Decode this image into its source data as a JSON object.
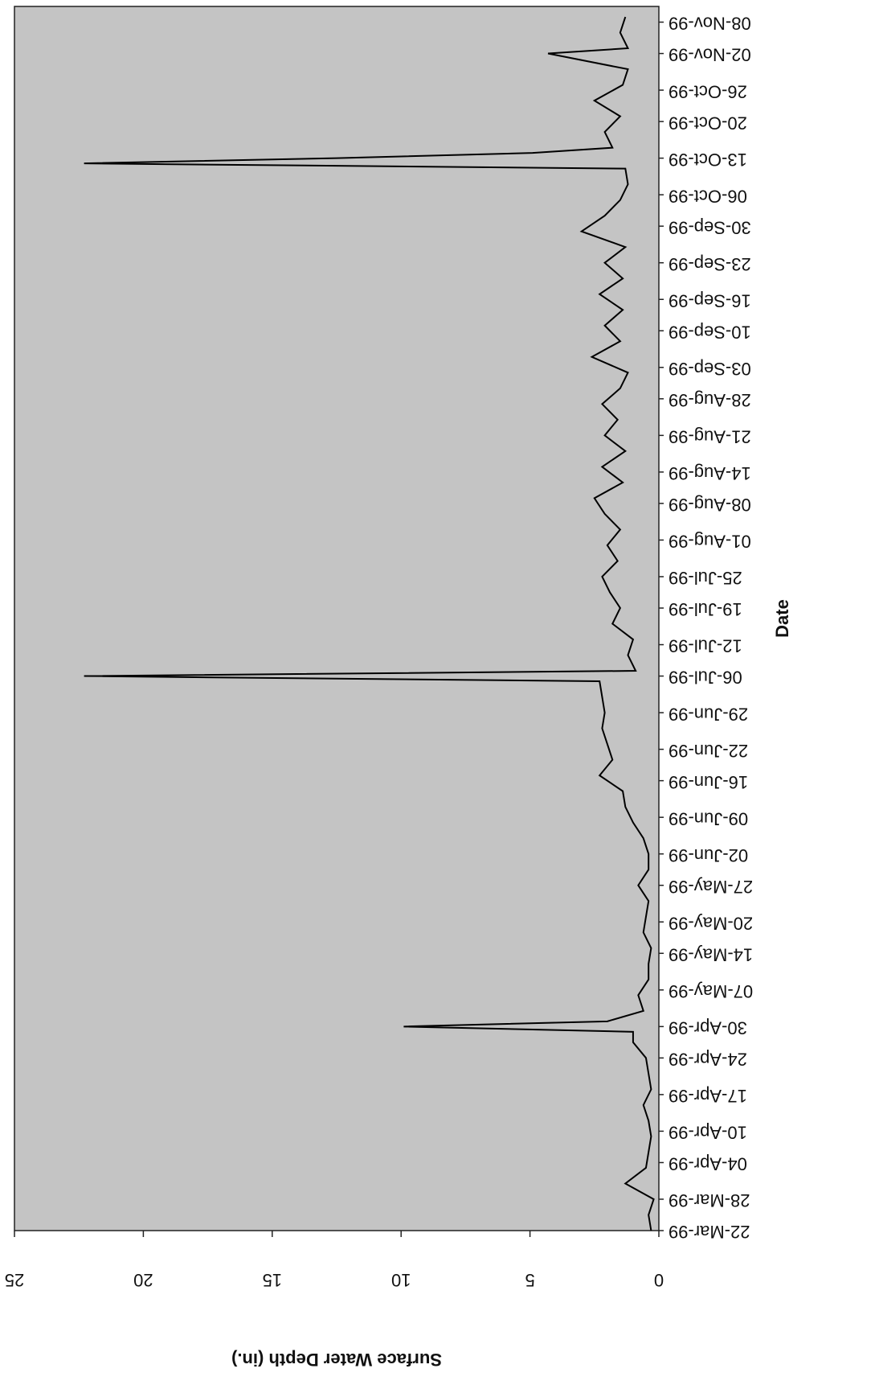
{
  "chart_data": {
    "type": "line",
    "x_label": "Date",
    "y_label": "Surface Water Depth (in.)",
    "x": [
      "1999-03-22",
      "1999-03-25",
      "1999-03-28",
      "1999-03-31",
      "1999-04-03",
      "1999-04-06",
      "1999-04-09",
      "1999-04-12",
      "1999-04-15",
      "1999-04-18",
      "1999-04-21",
      "1999-04-24",
      "1999-04-27",
      "1999-04-29",
      "1999-04-30",
      "1999-05-01",
      "1999-05-03",
      "1999-05-06",
      "1999-05-09",
      "1999-05-12",
      "1999-05-15",
      "1999-05-18",
      "1999-05-21",
      "1999-05-24",
      "1999-05-27",
      "1999-05-30",
      "1999-06-02",
      "1999-06-05",
      "1999-06-08",
      "1999-06-11",
      "1999-06-14",
      "1999-06-17",
      "1999-06-20",
      "1999-06-23",
      "1999-06-26",
      "1999-06-29",
      "1999-07-02",
      "1999-07-05",
      "1999-07-06",
      "1999-07-07",
      "1999-07-10",
      "1999-07-13",
      "1999-07-16",
      "1999-07-19",
      "1999-07-22",
      "1999-07-25",
      "1999-07-28",
      "1999-07-31",
      "1999-08-03",
      "1999-08-06",
      "1999-08-09",
      "1999-08-12",
      "1999-08-15",
      "1999-08-18",
      "1999-08-21",
      "1999-08-24",
      "1999-08-27",
      "1999-08-30",
      "1999-09-02",
      "1999-09-05",
      "1999-09-08",
      "1999-09-11",
      "1999-09-14",
      "1999-09-17",
      "1999-09-20",
      "1999-09-23",
      "1999-09-26",
      "1999-09-29",
      "1999-10-02",
      "1999-10-05",
      "1999-10-08",
      "1999-10-11",
      "1999-10-12",
      "1999-10-13",
      "1999-10-14",
      "1999-10-15",
      "1999-10-18",
      "1999-10-21",
      "1999-10-24",
      "1999-10-27",
      "1999-10-30",
      "1999-11-02",
      "1999-11-03",
      "1999-11-06",
      "1999-11-09"
    ],
    "values": [
      0.3,
      0.4,
      0.2,
      1.3,
      0.5,
      0.4,
      0.3,
      0.4,
      0.6,
      0.3,
      0.4,
      0.5,
      1.0,
      1.0,
      9.9,
      2.0,
      0.6,
      0.8,
      0.4,
      0.4,
      0.3,
      0.6,
      0.5,
      0.4,
      0.8,
      0.4,
      0.4,
      0.6,
      1.0,
      1.3,
      1.4,
      2.3,
      1.8,
      2.0,
      2.2,
      2.1,
      2.2,
      2.3,
      22.3,
      0.9,
      1.2,
      1.0,
      1.8,
      1.5,
      1.9,
      2.2,
      1.6,
      2.0,
      1.5,
      2.1,
      2.5,
      1.4,
      2.2,
      1.3,
      2.1,
      1.6,
      2.2,
      1.5,
      1.2,
      2.6,
      1.5,
      2.1,
      1.4,
      2.3,
      1.4,
      2.1,
      1.3,
      3.0,
      2.1,
      1.5,
      1.2,
      1.3,
      22.3,
      12.5,
      4.9,
      1.8,
      2.1,
      1.5,
      2.5,
      1.4,
      1.2,
      4.3,
      1.2,
      1.5,
      1.3
    ],
    "color": "#000000",
    "xlim": [
      "1999-03-22",
      "1999-11-11"
    ],
    "xticks": [
      {
        "value": "1999-03-22",
        "label": "22-Mar-99"
      },
      {
        "value": "1999-03-28",
        "label": "28-Mar-99"
      },
      {
        "value": "1999-04-04",
        "label": "04-Apr-99"
      },
      {
        "value": "1999-04-10",
        "label": "10-Apr-99"
      },
      {
        "value": "1999-04-17",
        "label": "17-Apr-99"
      },
      {
        "value": "1999-04-24",
        "label": "24-Apr-99"
      },
      {
        "value": "1999-04-30",
        "label": "30-Apr-99"
      },
      {
        "value": "1999-05-07",
        "label": "07-May-99"
      },
      {
        "value": "1999-05-14",
        "label": "14-May-99"
      },
      {
        "value": "1999-05-20",
        "label": "20-May-99"
      },
      {
        "value": "1999-05-27",
        "label": "27-May-99"
      },
      {
        "value": "1999-06-02",
        "label": "02-Jun-99"
      },
      {
        "value": "1999-06-09",
        "label": "09-Jun-99"
      },
      {
        "value": "1999-06-16",
        "label": "16-Jun-99"
      },
      {
        "value": "1999-06-22",
        "label": "22-Jun-99"
      },
      {
        "value": "1999-06-29",
        "label": "29-Jun-99"
      },
      {
        "value": "1999-07-06",
        "label": "06-Jul-99"
      },
      {
        "value": "1999-07-12",
        "label": "12-Jul-99"
      },
      {
        "value": "1999-07-19",
        "label": "19-Jul-99"
      },
      {
        "value": "1999-07-25",
        "label": "25-Jul-99"
      },
      {
        "value": "1999-08-01",
        "label": "01-Aug-99"
      },
      {
        "value": "1999-08-08",
        "label": "08-Aug-99"
      },
      {
        "value": "1999-08-14",
        "label": "14-Aug-99"
      },
      {
        "value": "1999-08-21",
        "label": "21-Aug-99"
      },
      {
        "value": "1999-08-28",
        "label": "28-Aug-99"
      },
      {
        "value": "1999-09-03",
        "label": "03-Sep-99"
      },
      {
        "value": "1999-09-10",
        "label": "10-Sep-99"
      },
      {
        "value": "1999-09-16",
        "label": "16-Sep-99"
      },
      {
        "value": "1999-09-23",
        "label": "23-Sep-99"
      },
      {
        "value": "1999-09-30",
        "label": "30-Sep-99"
      },
      {
        "value": "1999-10-06",
        "label": "06-Oct-99"
      },
      {
        "value": "1999-10-13",
        "label": "13-Oct-99"
      },
      {
        "value": "1999-10-20",
        "label": "20-Oct-99"
      },
      {
        "value": "1999-10-26",
        "label": "26-Oct-99"
      },
      {
        "value": "1999-11-02",
        "label": "02-Nov-99"
      },
      {
        "value": "1999-11-08",
        "label": "08-Nov-99"
      }
    ],
    "ylim": [
      0,
      25
    ],
    "yticks": [
      0,
      5,
      10,
      15,
      20,
      25
    ],
    "grid": false
  }
}
